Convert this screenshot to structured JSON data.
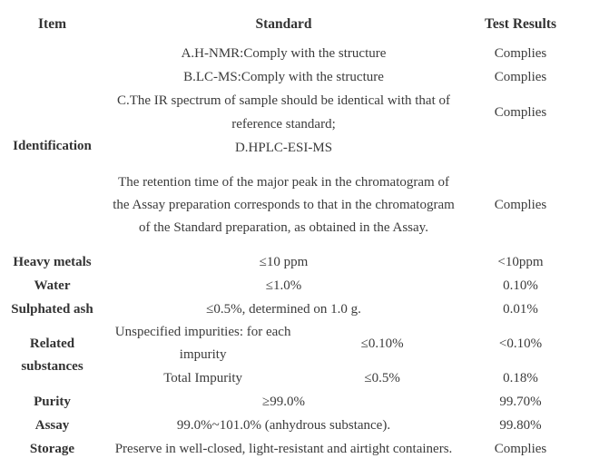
{
  "page": {
    "background_color": "#ffffff",
    "text_color": "#3b3b3b"
  },
  "table": {
    "columns": [
      {
        "label": "Item"
      },
      {
        "label": "Standard"
      },
      {
        "label": "Test Results"
      }
    ],
    "identification": {
      "item": "Identification",
      "rows": [
        {
          "standard": "A.H-NMR:Comply with the structure",
          "result": "Complies"
        },
        {
          "standard": "B.LC-MS:Comply with the structure",
          "result": "Complies"
        },
        {
          "standard": "C.The IR spectrum of sample should be identical with that of reference standard;",
          "result": "Complies"
        },
        {
          "standard": "D.HPLC-ESI-MS",
          "result": ""
        },
        {
          "standard": "The retention time of the major peak in the chromatogram of the Assay preparation corresponds to that in the chromatogram of the Standard preparation, as obtained in the Assay.",
          "result": "Complies"
        }
      ]
    },
    "simple_rows_1": [
      {
        "item": "Heavy metals",
        "standard": "≤10 ppm",
        "result": "<10ppm"
      },
      {
        "item": "Water",
        "standard": "≤1.0%",
        "result": "0.10%"
      },
      {
        "item": "Sulphated ash",
        "standard": "≤0.5%, determined on 1.0 g.",
        "result": "0.01%"
      }
    ],
    "related_substances": {
      "item": "Related substances",
      "rows": [
        {
          "description": "Unspecified impurities: for each impurity",
          "limit": "≤0.10%",
          "result": "<0.10%"
        },
        {
          "description": "Total Impurity",
          "limit": "≤0.5%",
          "result": "0.18%"
        }
      ]
    },
    "simple_rows_2": [
      {
        "item": "Purity",
        "standard": "≥99.0%",
        "result": "99.70%"
      },
      {
        "item": "Assay",
        "standard": "99.0%~101.0% (anhydrous substance).",
        "result": "99.80%"
      },
      {
        "item": "Storage",
        "standard": "Preserve in well-closed, light-resistant and airtight containers.",
        "result": "Complies"
      }
    ]
  }
}
